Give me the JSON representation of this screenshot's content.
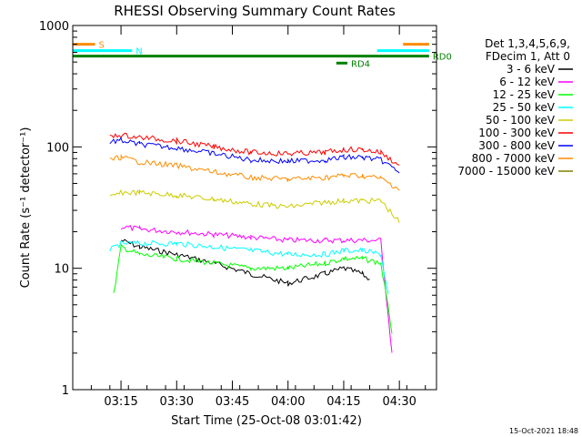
{
  "chart_data": {
    "type": "line",
    "title": "RHESSI Observing Summary Count Rates",
    "xlabel": "Start Time (25-Oct-08 03:01:42)",
    "ylabel": "Count Rate (s⁻¹ detector⁻¹)",
    "y_scale": "log",
    "ylim": [
      1,
      1000
    ],
    "xlim": [
      "03:02",
      "04:40"
    ],
    "y_ticks": [
      1,
      10,
      100,
      1000
    ],
    "y_tick_labels": [
      "1",
      "10",
      "100",
      "1000"
    ],
    "x_tick_labels": [
      "03:15",
      "03:30",
      "03:45",
      "04:00",
      "04:15",
      "04:30"
    ],
    "legend": {
      "placement": "right",
      "header_lines": [
        "Det 1,3,4,5,6,9,",
        "FDecim 1, Att 0"
      ]
    },
    "series": [
      {
        "name": "3 - 6 keV",
        "color": "#000000",
        "x": [
          "03:15",
          "03:20",
          "03:30",
          "03:40",
          "03:50",
          "04:00",
          "04:10",
          "04:15",
          "04:20",
          "04:22"
        ],
        "values": [
          17,
          15,
          13,
          11,
          9,
          7.5,
          9,
          10,
          9,
          8
        ]
      },
      {
        "name": "6 - 12 keV",
        "color": "#ff00ff",
        "x": [
          "03:15",
          "03:20",
          "03:30",
          "03:40",
          "03:50",
          "04:00",
          "04:10",
          "04:15",
          "04:20",
          "04:25",
          "04:28"
        ],
        "values": [
          22,
          21,
          20,
          19,
          18,
          17,
          17,
          17,
          17,
          17,
          2
        ]
      },
      {
        "name": "12 - 25 keV",
        "color": "#00ff00",
        "x": [
          "03:13",
          "03:15",
          "03:20",
          "03:30",
          "03:40",
          "03:50",
          "04:00",
          "04:10",
          "04:15",
          "04:20",
          "04:25",
          "04:28"
        ],
        "values": [
          6,
          15,
          13,
          12,
          11,
          10,
          10,
          11,
          12,
          12,
          11,
          3
        ]
      },
      {
        "name": "25 - 50 keV",
        "color": "#00ffff",
        "x": [
          "03:12",
          "03:15",
          "03:20",
          "03:30",
          "03:40",
          "03:50",
          "04:00",
          "04:10",
          "04:15",
          "04:20",
          "04:25",
          "04:27"
        ],
        "values": [
          14,
          16,
          16,
          16,
          15,
          14,
          13,
          13,
          14,
          14,
          13,
          6
        ]
      },
      {
        "name": "50 - 100 keV",
        "color": "#cccc00",
        "x": [
          "03:12",
          "03:15",
          "03:20",
          "03:30",
          "03:40",
          "03:50",
          "04:00",
          "04:10",
          "04:15",
          "04:20",
          "04:25",
          "04:30"
        ],
        "values": [
          38,
          42,
          42,
          40,
          37,
          34,
          32,
          35,
          36,
          36,
          36,
          24
        ]
      },
      {
        "name": "100 - 300 keV",
        "color": "#ff0000",
        "x": [
          "03:12",
          "03:15",
          "03:20",
          "03:30",
          "03:40",
          "03:50",
          "04:00",
          "04:10",
          "04:15",
          "04:20",
          "04:25",
          "04:30"
        ],
        "values": [
          120,
          125,
          120,
          112,
          100,
          90,
          88,
          90,
          95,
          95,
          90,
          70
        ]
      },
      {
        "name": "300 - 800 keV",
        "color": "#0000ff",
        "x": [
          "03:12",
          "03:15",
          "03:20",
          "03:30",
          "03:40",
          "03:50",
          "04:00",
          "04:10",
          "04:15",
          "04:20",
          "04:25",
          "04:30"
        ],
        "values": [
          110,
          113,
          105,
          98,
          88,
          78,
          76,
          78,
          82,
          82,
          78,
          62
        ]
      },
      {
        "name": "800 - 7000 keV",
        "color": "#ff8c00",
        "x": [
          "03:12",
          "03:15",
          "03:20",
          "03:30",
          "03:40",
          "03:50",
          "04:00",
          "04:10",
          "04:15",
          "04:20",
          "04:25",
          "04:30"
        ],
        "values": [
          78,
          82,
          75,
          70,
          62,
          56,
          54,
          56,
          58,
          58,
          55,
          45
        ]
      },
      {
        "name": "7000 - 15000 keV",
        "color": "#808000",
        "x": [],
        "values": []
      }
    ],
    "state_bars": [
      {
        "label": "S",
        "color": "#ff8c00",
        "x_start": "03:02",
        "x_end": "03:08",
        "y": 700
      },
      {
        "label": "",
        "color": "#ff8c00",
        "x_start": "04:31",
        "x_end": "04:38",
        "y": 700
      },
      {
        "label": "N",
        "color": "#00ffff",
        "x_start": "03:02",
        "x_end": "03:18",
        "y": 620
      },
      {
        "label": "",
        "color": "#00ffff",
        "x_start": "04:24",
        "x_end": "04:38",
        "y": 620
      },
      {
        "label": "RD0",
        "color": "#008000",
        "x_start": "03:02",
        "x_end": "04:38",
        "y": 560
      },
      {
        "label": "RD4",
        "color": "#008000",
        "x_start": "04:13",
        "x_end": "04:16",
        "y": 490
      }
    ],
    "annotation": "15-Oct-2021 18:48"
  }
}
